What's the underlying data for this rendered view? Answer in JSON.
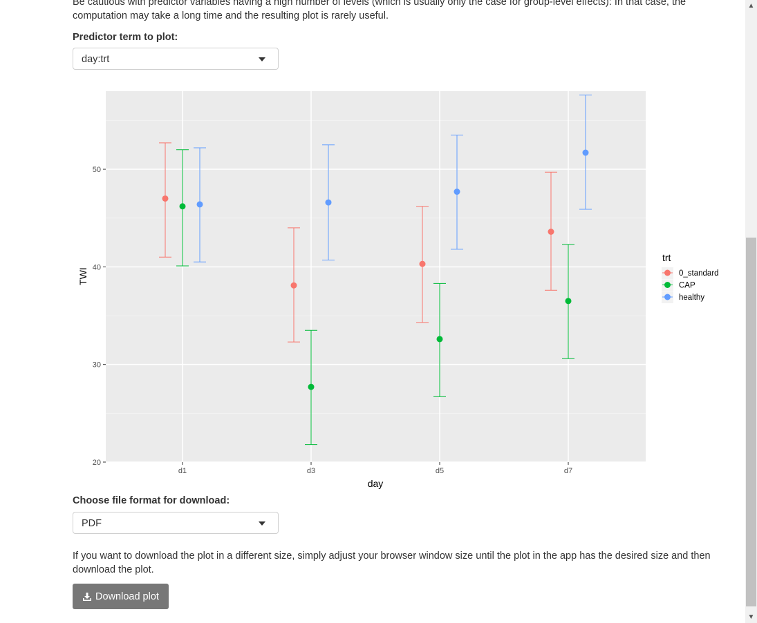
{
  "intro_text": "Be cautious with predictor variables having a high number of levels (which is usually only the case for group-level effects): In that case, the computation may take a long time and the resulting plot is rarely useful.",
  "predictor": {
    "label": "Predictor term to plot:",
    "value": "day:trt"
  },
  "format": {
    "label": "Choose file format for download:",
    "value": "PDF"
  },
  "note_text": "If you want to download the plot in a different size, simply adjust your browser window size until the plot in the app has the desired size and then download the plot.",
  "download_button": {
    "label": "Download plot",
    "icon": "download-icon"
  },
  "chart_data": {
    "type": "scatter",
    "xlabel": "day",
    "ylabel": "TWI",
    "categories": [
      "d1",
      "d3",
      "d5",
      "d7"
    ],
    "ylim": [
      20,
      58
    ],
    "yticks": [
      20,
      30,
      40,
      50
    ],
    "grid": true,
    "legend_title": "trt",
    "legend_position": "right",
    "series": [
      {
        "name": "0_standard",
        "color": "#F8766D",
        "values": [
          47.0,
          38.1,
          40.3,
          43.6
        ],
        "lower": [
          41.0,
          32.3,
          34.3,
          37.6
        ],
        "upper": [
          52.7,
          44.0,
          46.2,
          49.7
        ]
      },
      {
        "name": "CAP",
        "color": "#00BA38",
        "values": [
          46.2,
          27.7,
          32.6,
          36.5
        ],
        "lower": [
          40.1,
          21.8,
          26.7,
          30.6
        ],
        "upper": [
          52.0,
          33.5,
          38.3,
          42.3
        ]
      },
      {
        "name": "healthy",
        "color": "#619CFF",
        "values": [
          46.4,
          46.6,
          47.7,
          51.7
        ],
        "lower": [
          40.5,
          40.7,
          41.8,
          45.9
        ],
        "upper": [
          52.2,
          52.5,
          53.5,
          57.6
        ]
      }
    ]
  }
}
